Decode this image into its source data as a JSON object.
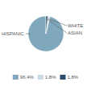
{
  "chart_data": {
    "type": "pie",
    "categories": [
      "HISPANIC",
      "WHITE",
      "ASIAN"
    ],
    "values": [
      96.4,
      1.8,
      1.8
    ],
    "value_labels": [
      "96.4%",
      "1.8%",
      "1.8%"
    ],
    "colors": [
      "#7fa8bc",
      "#c8dce6",
      "#2d4f6b"
    ],
    "legend": "bottom"
  }
}
